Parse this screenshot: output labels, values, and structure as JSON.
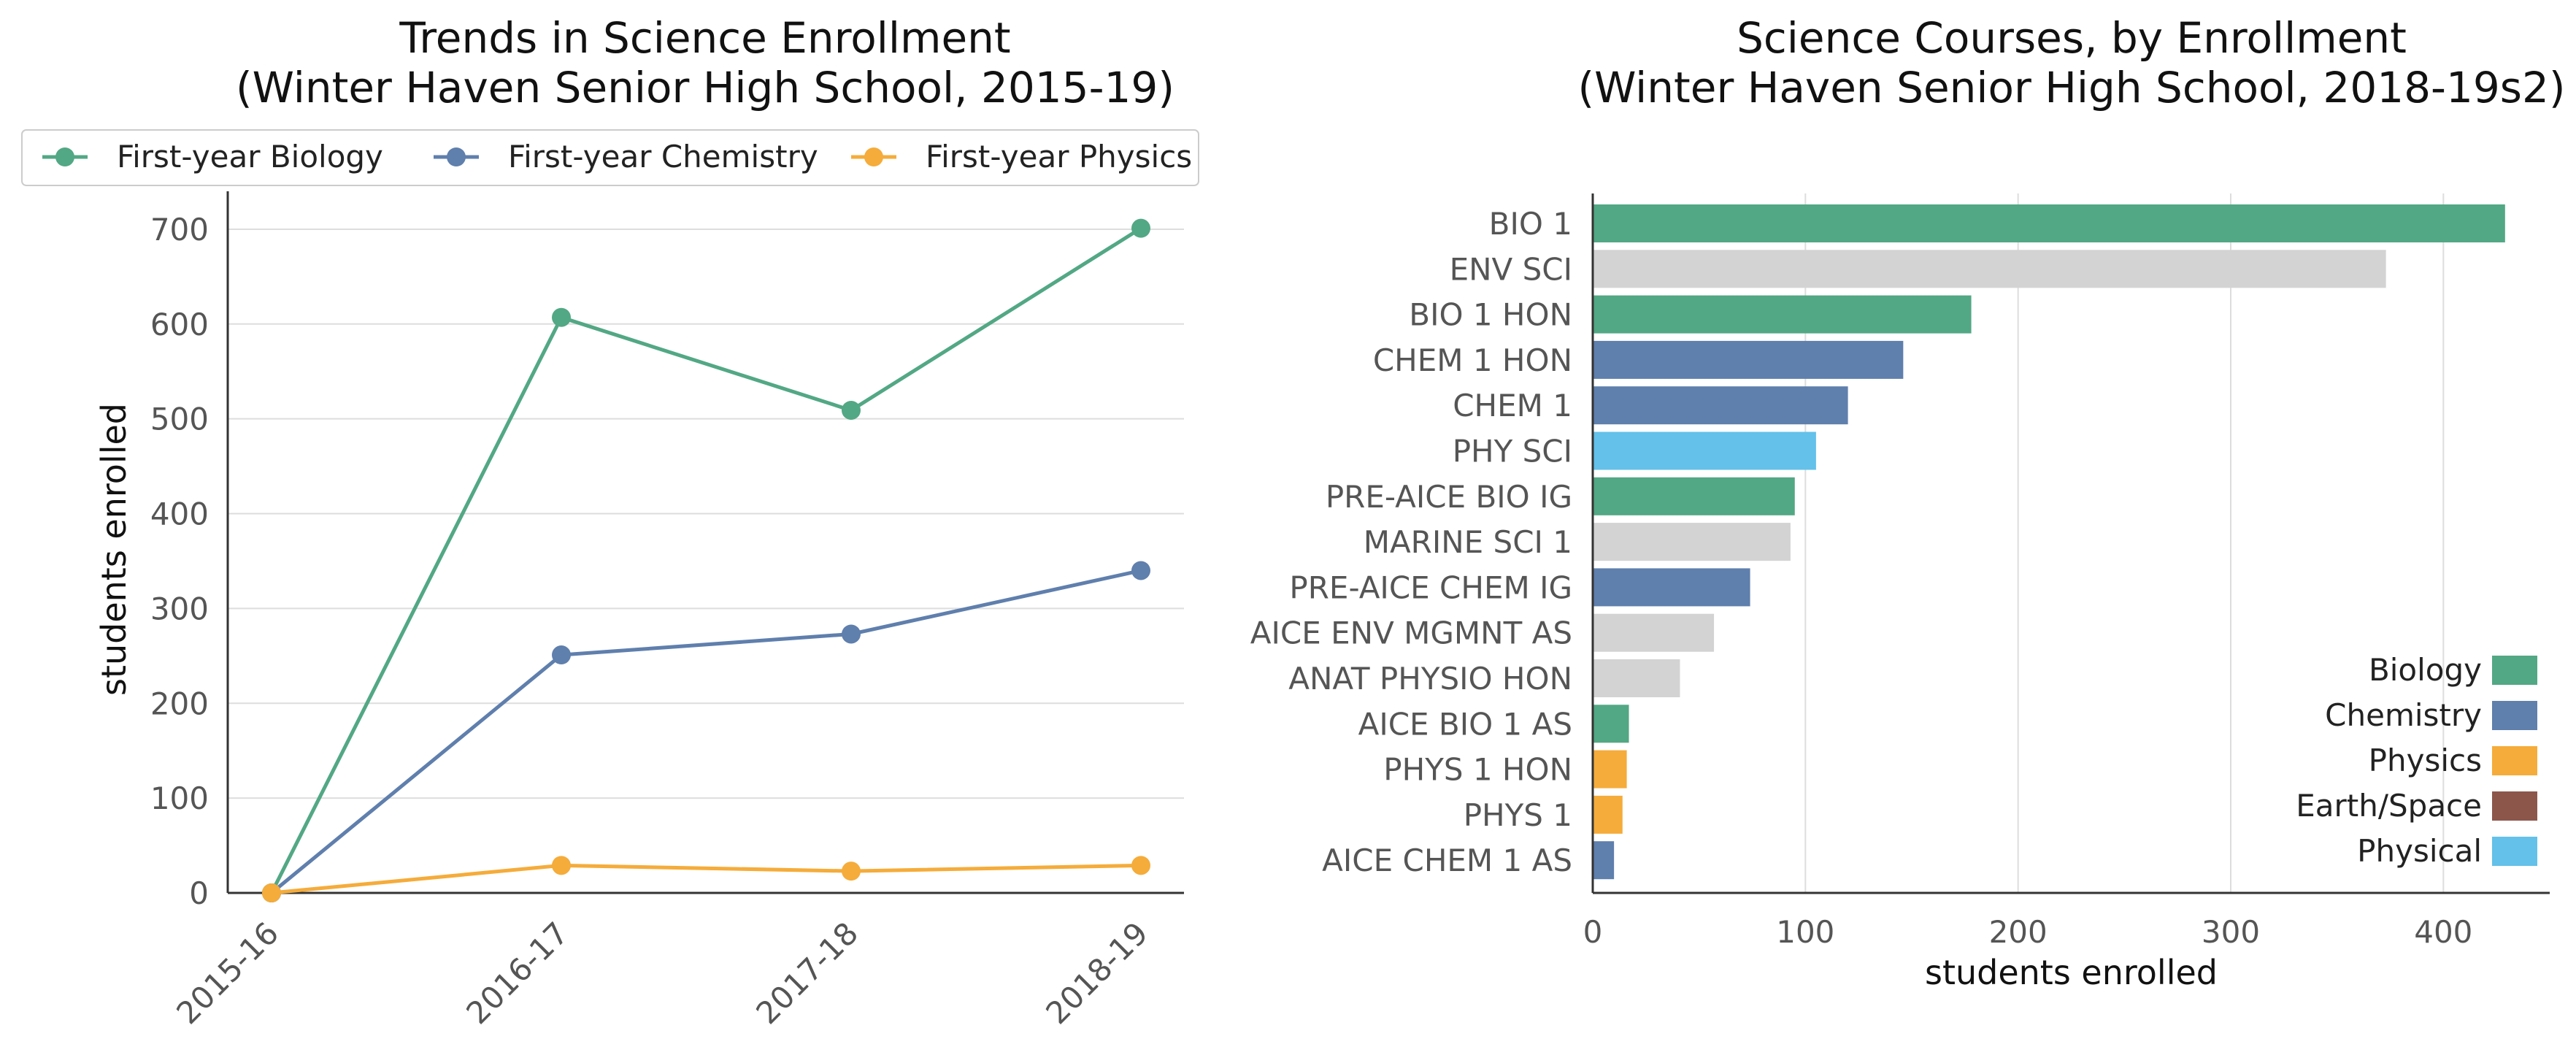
{
  "colors": {
    "biology": "#52a884",
    "chemistry": "#5f7fad",
    "physics": "#f5ac3a",
    "earth_space": "#8c564b",
    "physical": "#63c1ea",
    "other": "#d3d3d3",
    "grid": "#dddddd",
    "axis": "#333333"
  },
  "chart_data": [
    {
      "type": "line",
      "title": "Trends in Science Enrollment\n(Winter Haven Senior High School, 2015-19)",
      "xlabel": "",
      "ylabel": "students enrolled",
      "categories": [
        "2015-16",
        "2016-17",
        "2017-18",
        "2018-19"
      ],
      "ylim": [
        0,
        740
      ],
      "yticks": [
        0,
        100,
        200,
        300,
        400,
        500,
        600,
        700
      ],
      "grid": "horizontal",
      "legend_position": "top",
      "series": [
        {
          "name": "First-year Biology",
          "color_key": "biology",
          "values": [
            0,
            607,
            509,
            701
          ]
        },
        {
          "name": "First-year Chemistry",
          "color_key": "chemistry",
          "values": [
            0,
            251,
            273,
            340
          ]
        },
        {
          "name": "First-year Physics",
          "color_key": "physics",
          "values": [
            0,
            29,
            23,
            29
          ]
        }
      ]
    },
    {
      "type": "bar",
      "orientation": "horizontal",
      "title": "Science Courses, by Enrollment\n(Winter Haven Senior High School, 2018-19s2)",
      "xlabel": "students enrolled",
      "ylabel": "",
      "xlim": [
        0,
        450
      ],
      "xticks": [
        0,
        100,
        200,
        300,
        400
      ],
      "grid": "vertical",
      "legend_position": "lower right",
      "categories": [
        "BIO 1",
        "ENV SCI",
        "BIO 1 HON",
        "CHEM 1 HON",
        "CHEM 1",
        "PHY SCI",
        "PRE-AICE BIO IG",
        "MARINE SCI 1",
        "PRE-AICE CHEM IG",
        "AICE ENV MGMNT AS",
        "ANAT PHYSIO HON",
        "AICE BIO 1 AS",
        "PHYS 1 HON",
        "PHYS 1",
        "AICE CHEM 1 AS"
      ],
      "values": [
        429,
        373,
        178,
        146,
        120,
        105,
        95,
        93,
        74,
        57,
        41,
        17,
        16,
        14,
        10
      ],
      "groups": [
        "biology",
        "other",
        "biology",
        "chemistry",
        "chemistry",
        "physical",
        "biology",
        "other",
        "chemistry",
        "other",
        "other",
        "biology",
        "physics",
        "physics",
        "chemistry"
      ],
      "legend": [
        {
          "name": "Biology",
          "color_key": "biology"
        },
        {
          "name": "Chemistry",
          "color_key": "chemistry"
        },
        {
          "name": "Physics",
          "color_key": "physics"
        },
        {
          "name": "Earth/Space",
          "color_key": "earth_space"
        },
        {
          "name": "Physical",
          "color_key": "physical"
        }
      ]
    }
  ]
}
